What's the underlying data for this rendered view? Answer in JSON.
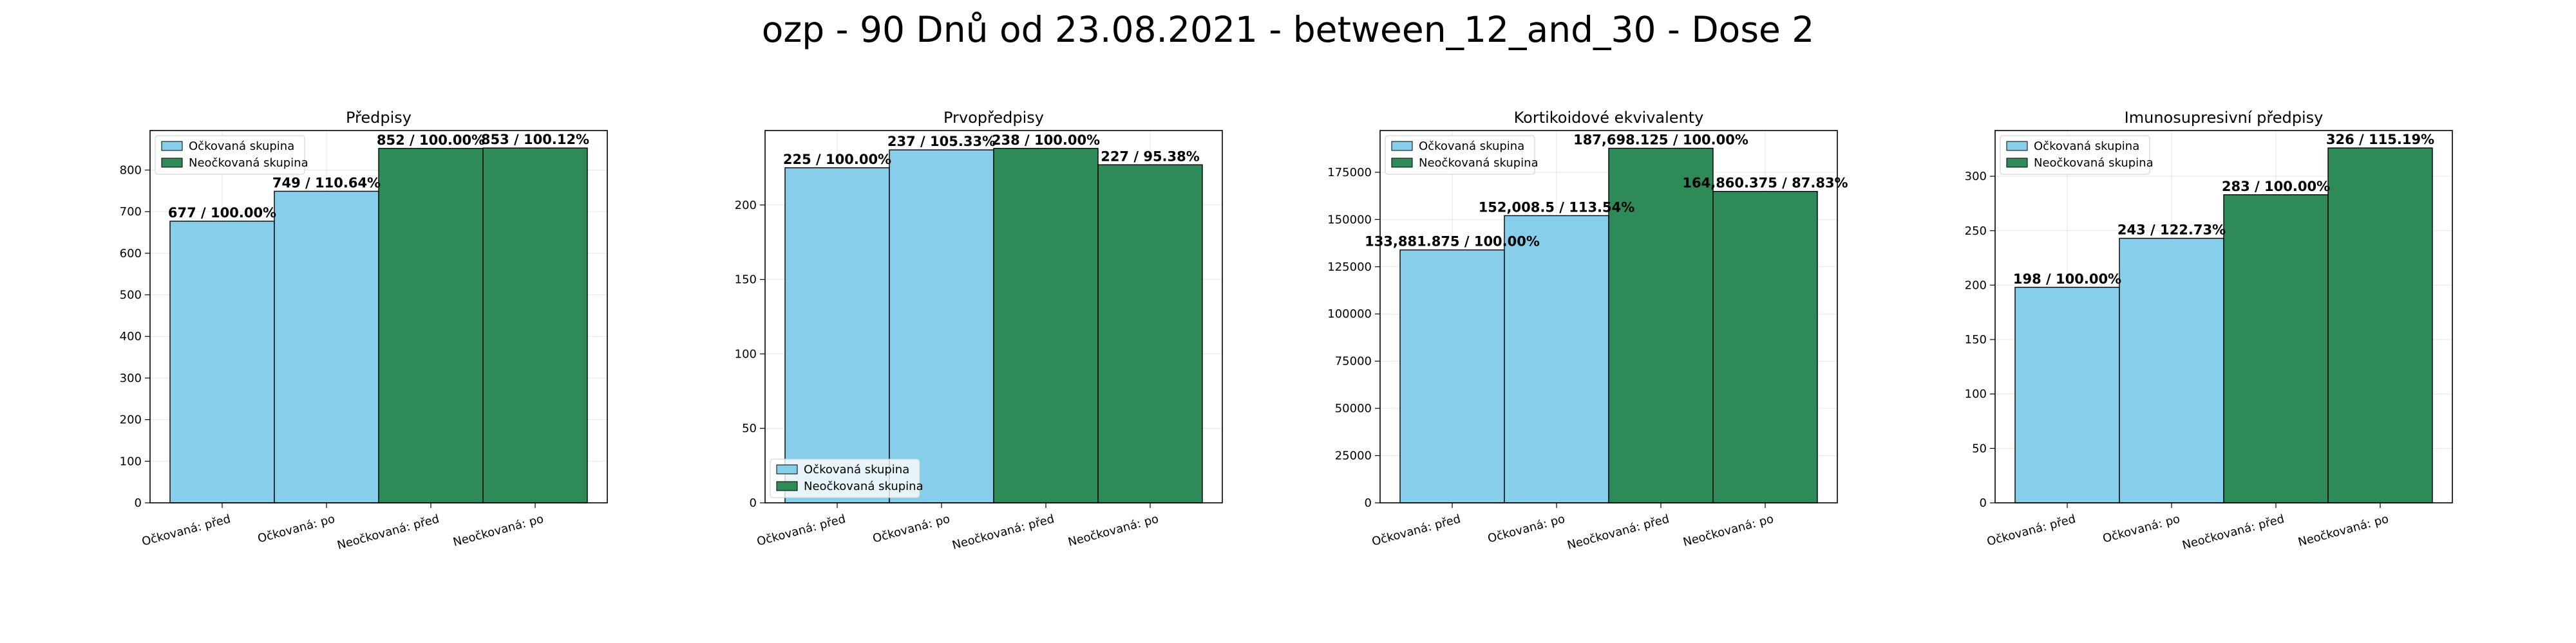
{
  "figure": {
    "title": "ozp - 90 Dnů od 23.08.2021 - between_12_and_30 - Dose 2"
  },
  "colors": {
    "vaccinated": "#87CEEB",
    "unvaccinated": "#2E8B57"
  },
  "chart_data": [
    {
      "type": "bar",
      "title": "Předpisy",
      "categories": [
        "Očkovaná: před",
        "Očkovaná: po",
        "Neočkovaná: před",
        "Neočkovaná: po"
      ],
      "values": [
        677,
        749,
        852,
        853
      ],
      "groups": [
        "vaccinated",
        "vaccinated",
        "unvaccinated",
        "unvaccinated"
      ],
      "bar_labels": [
        "677 / 100.00%",
        "749 / 110.64%",
        "852 / 100.00%",
        "853 / 100.12%"
      ],
      "yticks": [
        0,
        100,
        200,
        300,
        400,
        500,
        600,
        700,
        800
      ],
      "ylim": [
        0,
        895
      ],
      "grid": true,
      "legend": {
        "position": "top-left",
        "entries": [
          "Očkovaná skupina",
          "Neočkovaná skupina"
        ]
      }
    },
    {
      "type": "bar",
      "title": "Prvopředpisy",
      "categories": [
        "Očkovaná: před",
        "Očkovaná: po",
        "Neočkovaná: před",
        "Neočkovaná: po"
      ],
      "values": [
        225,
        237,
        238,
        227
      ],
      "groups": [
        "vaccinated",
        "vaccinated",
        "unvaccinated",
        "unvaccinated"
      ],
      "bar_labels": [
        "225 / 100.00%",
        "237 / 105.33%",
        "238 / 100.00%",
        "227 / 95.38%"
      ],
      "yticks": [
        0,
        50,
        100,
        150,
        200
      ],
      "ylim": [
        0,
        250
      ],
      "grid": true,
      "legend": {
        "position": "bottom-left",
        "entries": [
          "Očkovaná skupina",
          "Neočkovaná skupina"
        ]
      }
    },
    {
      "type": "bar",
      "title": "Kortikoidové ekvivalenty",
      "categories": [
        "Očkovaná: před",
        "Očkovaná: po",
        "Neočkovaná: před",
        "Neočkovaná: po"
      ],
      "values": [
        133881.875,
        152008.5,
        187698.125,
        164860.375
      ],
      "groups": [
        "vaccinated",
        "vaccinated",
        "unvaccinated",
        "unvaccinated"
      ],
      "bar_labels": [
        "133,881.875 / 100.00%",
        "152,008.5 / 113.54%",
        "187,698.125 / 100.00%",
        "164,860.375 / 87.83%"
      ],
      "yticks": [
        0,
        25000,
        50000,
        75000,
        100000,
        125000,
        150000,
        175000
      ],
      "ylim": [
        0,
        197083
      ],
      "grid": true,
      "legend": {
        "position": "top-left",
        "entries": [
          "Očkovaná skupina",
          "Neočkovaná skupina"
        ]
      }
    },
    {
      "type": "bar",
      "title": "Imunosupresivní předpisy",
      "categories": [
        "Očkovaná: před",
        "Očkovaná: po",
        "Neočkovaná: před",
        "Neočkovaná: po"
      ],
      "values": [
        198,
        243,
        283,
        326
      ],
      "groups": [
        "vaccinated",
        "vaccinated",
        "unvaccinated",
        "unvaccinated"
      ],
      "bar_labels": [
        "198 / 100.00%",
        "243 / 122.73%",
        "283 / 100.00%",
        "326 / 115.19%"
      ],
      "yticks": [
        0,
        50,
        100,
        150,
        200,
        250,
        300
      ],
      "ylim": [
        0,
        342
      ],
      "grid": true,
      "legend": {
        "position": "top-left",
        "entries": [
          "Očkovaná skupina",
          "Neočkovaná skupina"
        ]
      }
    }
  ]
}
